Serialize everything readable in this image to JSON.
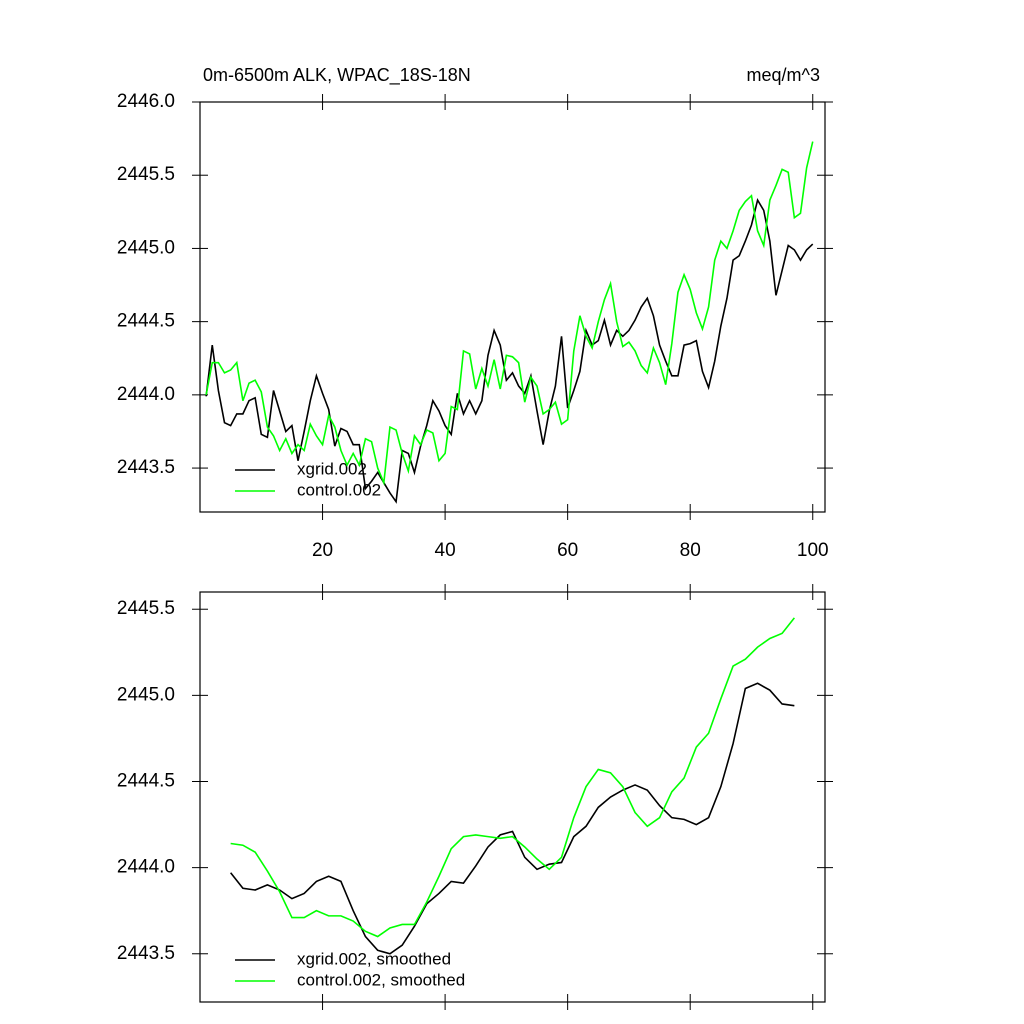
{
  "chart_data": [
    {
      "type": "line",
      "title": "0m-6500m ALK, WPAC_18S-18N",
      "units": "meq/m^3",
      "x": [
        1,
        2,
        3,
        4,
        5,
        6,
        7,
        8,
        9,
        10,
        11,
        12,
        13,
        14,
        15,
        16,
        17,
        18,
        19,
        20,
        21,
        22,
        23,
        24,
        25,
        26,
        27,
        28,
        29,
        30,
        31,
        32,
        33,
        34,
        35,
        36,
        37,
        38,
        39,
        40,
        41,
        42,
        43,
        44,
        45,
        46,
        47,
        48,
        49,
        50,
        51,
        52,
        53,
        54,
        55,
        56,
        57,
        58,
        59,
        60,
        61,
        62,
        63,
        64,
        65,
        66,
        67,
        68,
        69,
        70,
        71,
        72,
        73,
        74,
        75,
        76,
        77,
        78,
        79,
        80,
        81,
        82,
        83,
        84,
        85,
        86,
        87,
        88,
        89,
        90,
        91,
        92,
        93,
        94,
        95,
        96,
        97,
        98,
        99,
        100
      ],
      "series": [
        {
          "name": "xgrid.002",
          "color": "#000000",
          "values": [
            2443.99,
            2444.34,
            2444.03,
            2443.81,
            2443.79,
            2443.87,
            2443.87,
            2443.96,
            2443.98,
            2443.73,
            2443.71,
            2444.03,
            2443.89,
            2443.75,
            2443.79,
            2443.55,
            2443.75,
            2443.96,
            2444.13,
            2444.01,
            2443.9,
            2443.65,
            2443.77,
            2443.75,
            2443.66,
            2443.66,
            2443.36,
            2443.41,
            2443.47,
            2443.4,
            2443.33,
            2443.27,
            2443.62,
            2443.6,
            2443.47,
            2443.65,
            2443.79,
            2443.96,
            2443.89,
            2443.79,
            2443.73,
            2444.01,
            2443.87,
            2443.96,
            2443.87,
            2443.96,
            2444.27,
            2444.44,
            2444.34,
            2444.1,
            2444.15,
            2444.06,
            2444.01,
            2444.13,
            2443.89,
            2443.66,
            2443.89,
            2444.06,
            2444.4,
            2443.91,
            2444.03,
            2444.16,
            2444.44,
            2444.34,
            2444.37,
            2444.51,
            2444.34,
            2444.44,
            2444.4,
            2444.44,
            2444.51,
            2444.6,
            2444.66,
            2444.54,
            2444.34,
            2444.23,
            2444.13,
            2444.13,
            2444.34,
            2444.35,
            2444.37,
            2444.16,
            2444.05,
            2444.23,
            2444.47,
            2444.66,
            2444.92,
            2444.95,
            2445.05,
            2445.16,
            2445.33,
            2445.26,
            2445.05,
            2444.68,
            2444.85,
            2445.02,
            2444.99,
            2444.92,
            2444.99,
            2445.03
          ]
        },
        {
          "name": "control.002",
          "color": "#00ff00",
          "values": [
            2444.0,
            2444.22,
            2444.22,
            2444.15,
            2444.17,
            2444.22,
            2443.96,
            2444.08,
            2444.1,
            2444.02,
            2443.78,
            2443.72,
            2443.62,
            2443.7,
            2443.6,
            2443.66,
            2443.62,
            2443.8,
            2443.72,
            2443.66,
            2443.86,
            2443.78,
            2443.62,
            2443.52,
            2443.6,
            2443.52,
            2443.7,
            2443.68,
            2443.5,
            2443.4,
            2443.78,
            2443.76,
            2443.6,
            2443.48,
            2443.72,
            2443.66,
            2443.76,
            2443.74,
            2443.55,
            2443.6,
            2443.92,
            2443.9,
            2444.3,
            2444.28,
            2444.04,
            2444.18,
            2444.06,
            2444.24,
            2444.04,
            2444.27,
            2444.26,
            2444.22,
            2443.95,
            2444.12,
            2444.06,
            2443.87,
            2443.9,
            2443.95,
            2443.8,
            2443.83,
            2444.3,
            2444.54,
            2444.4,
            2444.32,
            2444.5,
            2444.65,
            2444.76,
            2444.5,
            2444.33,
            2444.36,
            2444.3,
            2444.2,
            2444.15,
            2444.32,
            2444.22,
            2444.07,
            2444.35,
            2444.7,
            2444.82,
            2444.72,
            2444.56,
            2444.45,
            2444.6,
            2444.92,
            2445.05,
            2445.0,
            2445.12,
            2445.26,
            2445.32,
            2445.36,
            2445.12,
            2445.02,
            2445.33,
            2445.43,
            2445.54,
            2445.52,
            2445.21,
            2445.24,
            2445.55,
            2445.73
          ]
        }
      ],
      "xlim": [
        0,
        102
      ],
      "xticks": [
        20,
        40,
        60,
        80,
        100
      ],
      "xtick_labels": true,
      "ylim": [
        2443.2,
        2446.0
      ],
      "yticks": [
        2443.5,
        {
          "value": 2444.0,
          "label": "2444.0"
        },
        2444.5,
        {
          "value": 2445.0,
          "label": "2445.0"
        },
        2445.5,
        {
          "value": 2446.0,
          "label": "2446.0"
        }
      ],
      "legend": "lower left"
    },
    {
      "type": "line",
      "x": [
        5,
        7,
        9,
        11,
        13,
        15,
        17,
        19,
        21,
        23,
        25,
        27,
        29,
        31,
        33,
        35,
        37,
        39,
        41,
        43,
        45,
        47,
        49,
        51,
        53,
        55,
        57,
        59,
        61,
        63,
        65,
        67,
        69,
        71,
        73,
        75,
        77,
        79,
        81,
        83,
        85,
        87,
        89,
        91,
        93,
        95,
        97
      ],
      "series": [
        {
          "name": "xgrid.002, smoothed",
          "color": "#000000",
          "values": [
            2443.97,
            2443.88,
            2443.87,
            2443.9,
            2443.87,
            2443.82,
            2443.85,
            2443.92,
            2443.95,
            2443.92,
            2443.75,
            2443.6,
            2443.52,
            2443.5,
            2443.55,
            2443.66,
            2443.79,
            2443.85,
            2443.92,
            2443.91,
            2444.01,
            2444.12,
            2444.19,
            2444.21,
            2444.06,
            2443.99,
            2444.02,
            2444.03,
            2444.18,
            2444.24,
            2444.35,
            2444.41,
            2444.45,
            2444.48,
            2444.45,
            2444.36,
            2444.29,
            2444.28,
            2444.25,
            2444.29,
            2444.47,
            2444.72,
            2445.04,
            2445.07,
            2445.03,
            2444.95,
            2444.94
          ]
        },
        {
          "name": "control.002, smoothed",
          "color": "#00ff00",
          "values": [
            2444.14,
            2444.13,
            2444.09,
            2443.98,
            2443.86,
            2443.71,
            2443.71,
            2443.75,
            2443.72,
            2443.72,
            2443.69,
            2443.63,
            2443.6,
            2443.65,
            2443.67,
            2443.67,
            2443.8,
            2443.95,
            2444.11,
            2444.18,
            2444.19,
            2444.18,
            2444.17,
            2444.18,
            2444.12,
            2444.05,
            2443.99,
            2444.06,
            2444.29,
            2444.47,
            2444.57,
            2444.55,
            2444.47,
            2444.32,
            2444.24,
            2444.29,
            2444.44,
            2444.52,
            2444.7,
            2444.78,
            2444.98,
            2445.17,
            2445.21,
            2445.28,
            2445.33,
            2445.36,
            2445.45
          ]
        }
      ],
      "xlim": [
        0,
        102
      ],
      "xticks": [
        20,
        40,
        60,
        80,
        100
      ],
      "xtick_labels": false,
      "ylim": [
        2443.22,
        2445.6
      ],
      "yticks": [
        2443.5,
        {
          "value": 2444.0,
          "label": "2444.0"
        },
        2444.5,
        {
          "value": 2445.0,
          "label": "2445.0"
        },
        2445.5
      ],
      "legend": "lower left"
    }
  ]
}
